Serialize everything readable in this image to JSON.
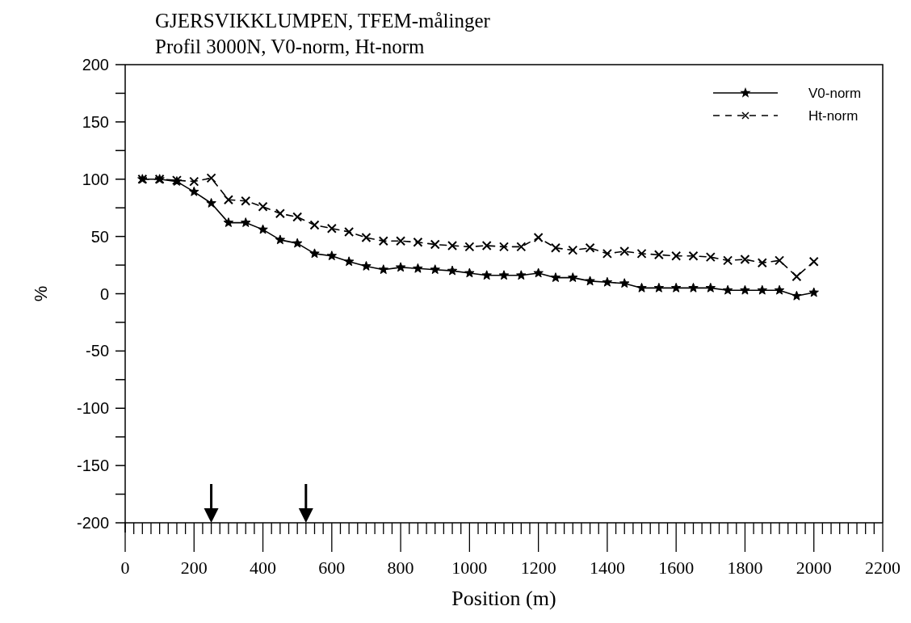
{
  "chart_data": {
    "type": "line",
    "title": "GJERSVIKKLUMPEN,  TFEM-målinger",
    "subtitle": "Profil 3000N,  V0-norm, Ht-norm",
    "xlabel": "Position (m)",
    "ylabel": "%",
    "x": [
      50,
      100,
      150,
      200,
      250,
      300,
      350,
      400,
      450,
      500,
      550,
      600,
      650,
      700,
      750,
      800,
      850,
      900,
      950,
      1000,
      1050,
      1100,
      1150,
      1200,
      1250,
      1300,
      1350,
      1400,
      1450,
      1500,
      1550,
      1600,
      1650,
      1700,
      1750,
      1800,
      1850,
      1900,
      1950,
      2000
    ],
    "series": [
      {
        "name": "V0-norm",
        "color": "#000000",
        "marker": "star",
        "line_style": "solid",
        "values": [
          100,
          100,
          98,
          89,
          79,
          62,
          62,
          56,
          47,
          44,
          35,
          33,
          28,
          24,
          21,
          23,
          22,
          21,
          20,
          18,
          16,
          16,
          16,
          18,
          14,
          14,
          11,
          10,
          9,
          5,
          5,
          5,
          5,
          5,
          3,
          3,
          3,
          3,
          -2,
          1
        ]
      },
      {
        "name": "Ht-norm",
        "color": "#000000",
        "marker": "cross",
        "line_style": "dashed",
        "values": [
          100,
          100,
          99,
          98,
          101,
          82,
          81,
          76,
          70,
          67,
          60,
          57,
          54,
          49,
          46,
          46,
          45,
          43,
          42,
          41,
          42,
          41,
          41,
          49,
          40,
          38,
          40,
          35,
          37,
          35,
          34,
          33,
          33,
          32,
          29,
          30,
          27,
          29,
          15,
          28
        ]
      }
    ],
    "xlim": [
      0,
      2200
    ],
    "ylim": [
      -200,
      200
    ],
    "xticks": [
      0,
      200,
      400,
      600,
      800,
      1000,
      1200,
      1400,
      1600,
      1800,
      2000,
      2200
    ],
    "yticks": [
      {
        "value": -200,
        "label": "-200"
      },
      {
        "value": -175,
        "label": null
      },
      {
        "value": -150,
        "label": "-150"
      },
      {
        "value": -125,
        "label": null
      },
      {
        "value": -100,
        "label": "-100"
      },
      {
        "value": -75,
        "label": null
      },
      {
        "value": -50,
        "label": "-50"
      },
      {
        "value": -25,
        "label": null
      },
      {
        "value": 0,
        "label": "0"
      },
      {
        "value": 25,
        "label": null
      },
      {
        "value": 50,
        "label": "50"
      },
      {
        "value": 75,
        "label": null
      },
      {
        "value": 100,
        "label": "100"
      },
      {
        "value": 125,
        "label": null
      },
      {
        "value": 150,
        "label": "150"
      },
      {
        "value": 175,
        "label": null
      },
      {
        "value": 200,
        "label": "200"
      }
    ],
    "grid": false,
    "legend": "top right"
  }
}
